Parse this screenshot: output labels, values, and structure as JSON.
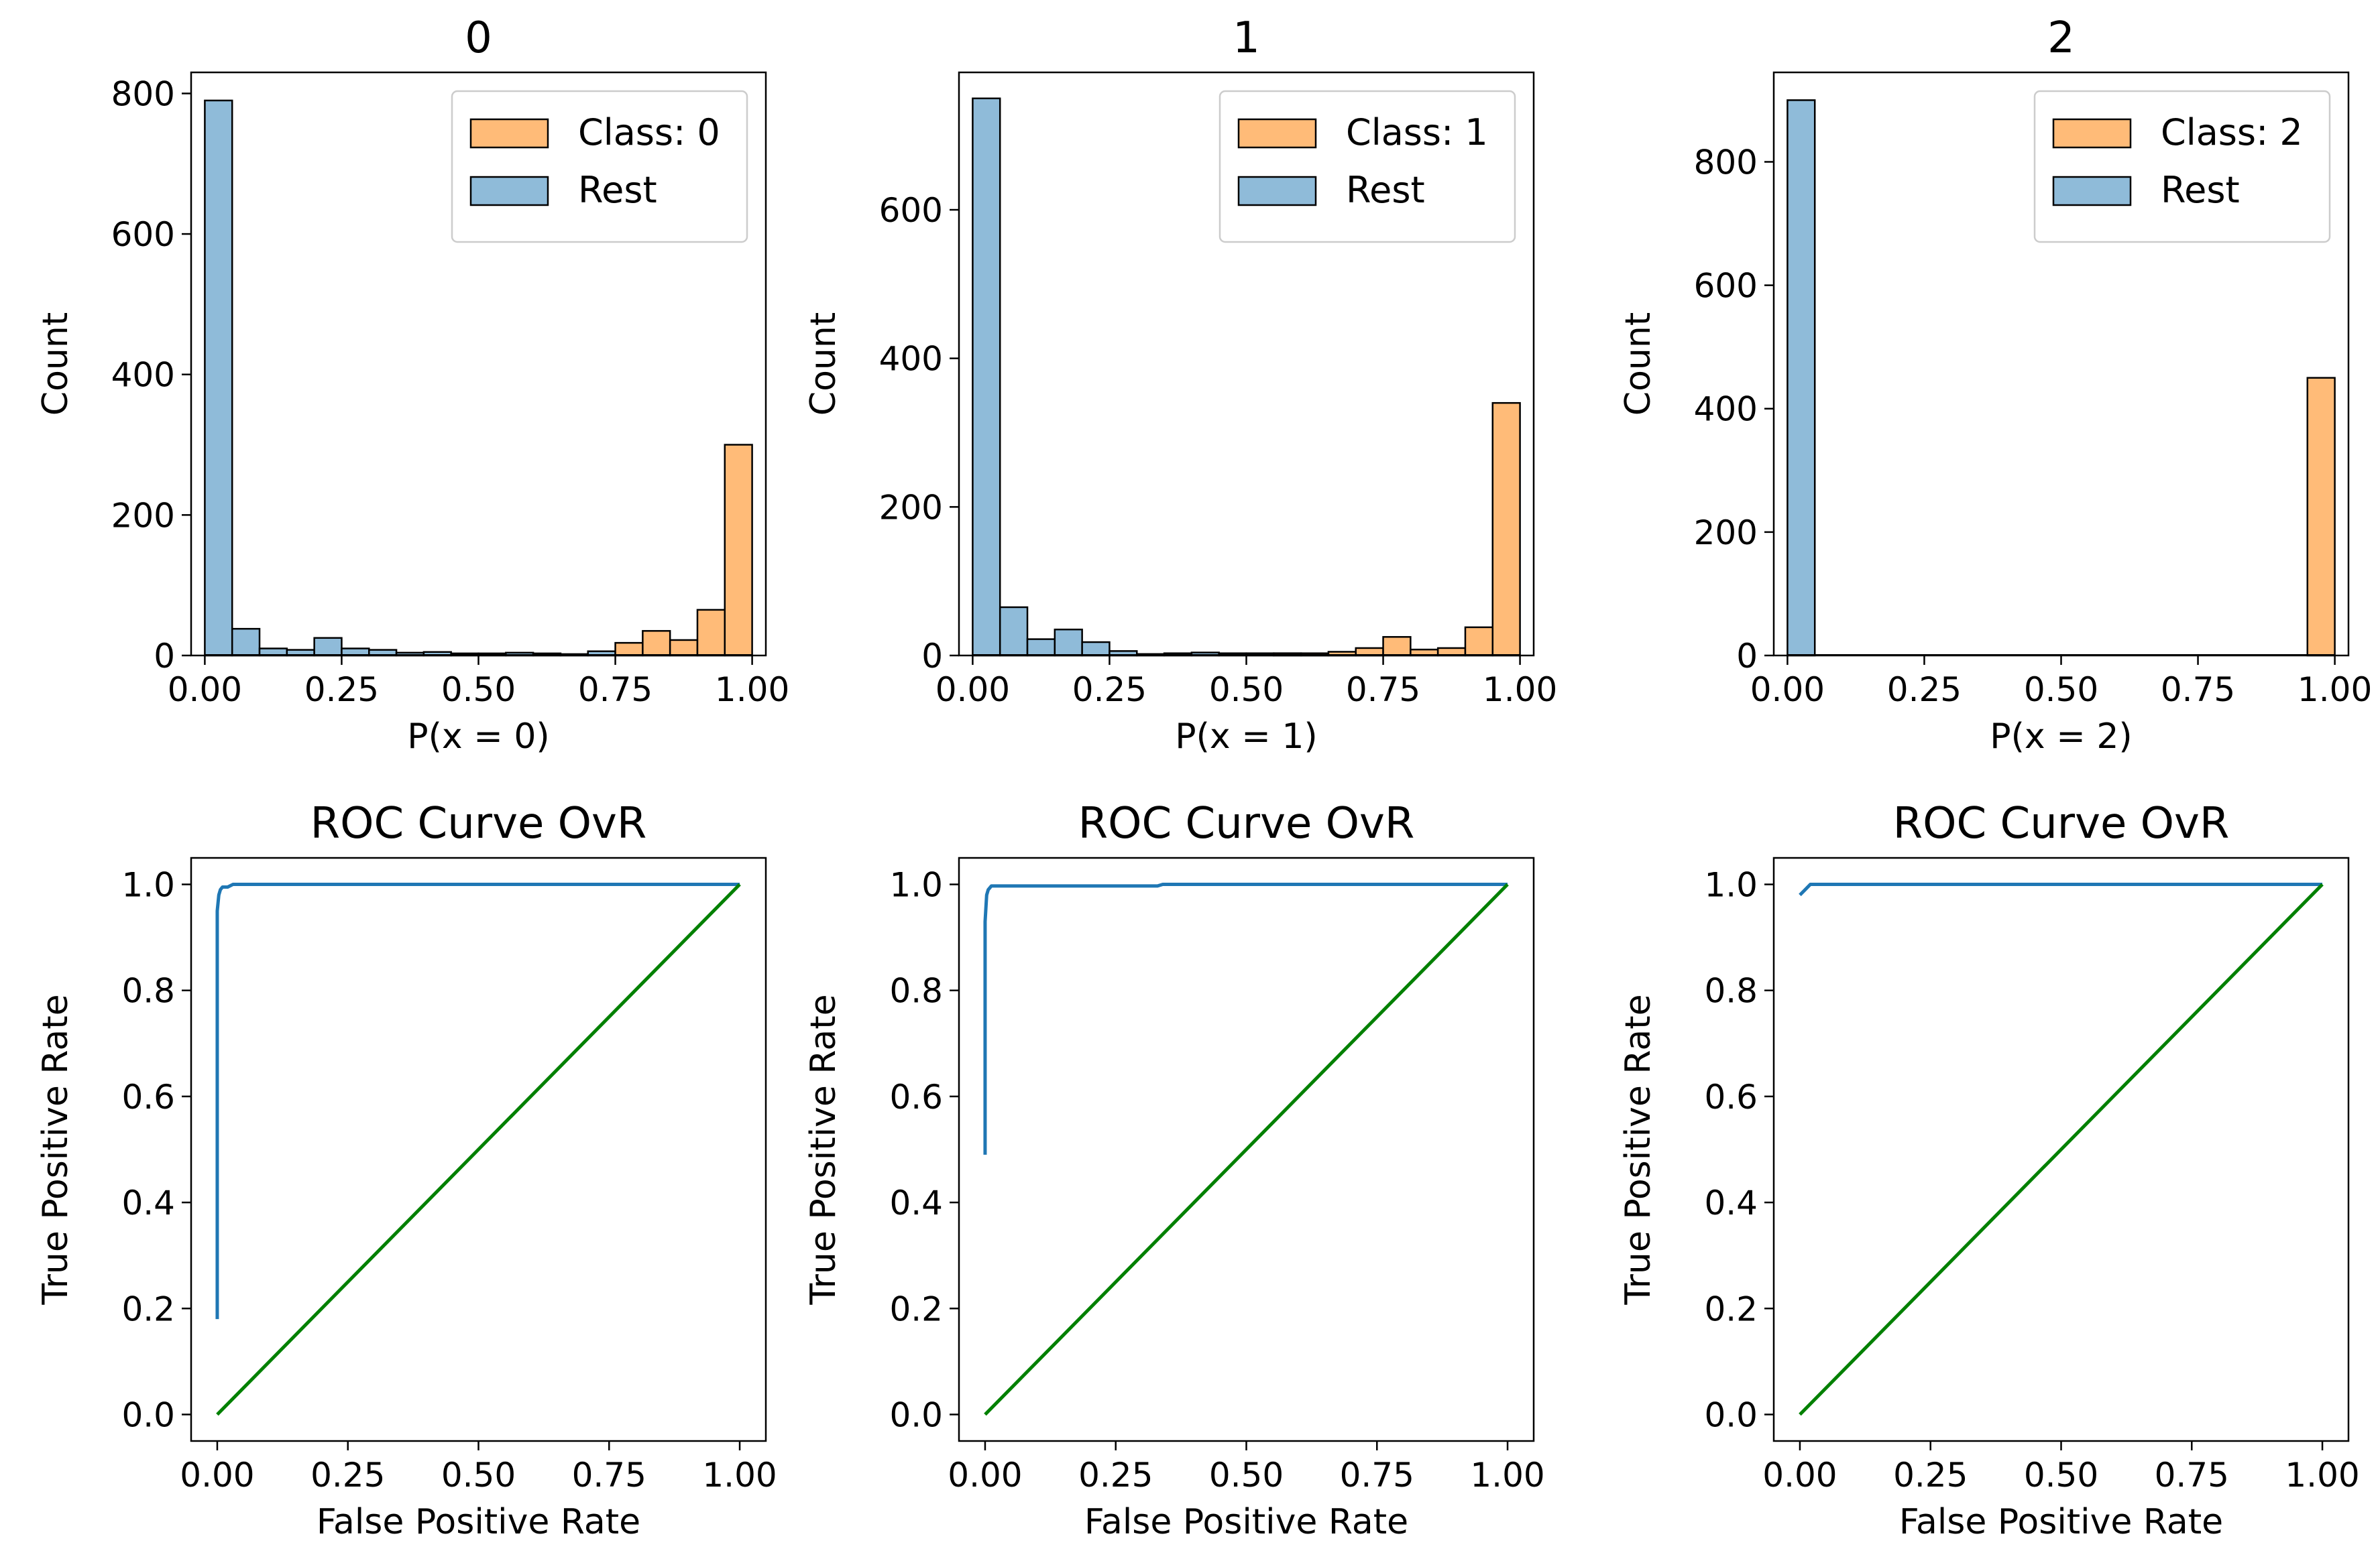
{
  "colors": {
    "class_hist": "#ffbb78",
    "rest_hist": "#8fbbd9",
    "roc_line": "#1f77b4",
    "diagonal": "#008000",
    "edge": "#000000"
  },
  "chart_data": [
    {
      "type": "bar",
      "kind": "histogram",
      "title": "0",
      "xlabel": "P(x = 0)",
      "ylabel": "Count",
      "xlim": [
        -0.025,
        1.025
      ],
      "ylim": [
        0,
        830
      ],
      "xticks": [
        0.0,
        0.25,
        0.5,
        0.75,
        1.0
      ],
      "xtick_labels": [
        "0.00",
        "0.25",
        "0.50",
        "0.75",
        "1.00"
      ],
      "yticks": [
        0,
        200,
        400,
        600,
        800
      ],
      "ytick_labels": [
        "0",
        "200",
        "400",
        "600",
        "800"
      ],
      "bin_width": 0.05,
      "bin_starts": [
        0.0,
        0.05,
        0.1,
        0.15,
        0.2,
        0.25,
        0.3,
        0.35,
        0.4,
        0.45,
        0.5,
        0.55,
        0.6,
        0.65,
        0.7,
        0.75,
        0.8,
        0.85,
        0.9,
        0.95
      ],
      "legend_position": "top-right",
      "series": [
        {
          "name": "Class: 0",
          "values": [
            0,
            0,
            0,
            0,
            0,
            0,
            0,
            0,
            0,
            0,
            0,
            0,
            0,
            0,
            0,
            18,
            35,
            22,
            65,
            300
          ]
        },
        {
          "name": "Rest",
          "values": [
            790,
            38,
            10,
            8,
            25,
            10,
            8,
            4,
            5,
            3,
            3,
            4,
            3,
            2,
            6,
            0,
            0,
            0,
            0,
            0
          ]
        }
      ]
    },
    {
      "type": "bar",
      "kind": "histogram",
      "title": "1",
      "xlabel": "P(x = 1)",
      "ylabel": "Count",
      "xlim": [
        -0.025,
        1.025
      ],
      "ylim": [
        0,
        785
      ],
      "xticks": [
        0.0,
        0.25,
        0.5,
        0.75,
        1.0
      ],
      "xtick_labels": [
        "0.00",
        "0.25",
        "0.50",
        "0.75",
        "1.00"
      ],
      "yticks": [
        0,
        200,
        400,
        600
      ],
      "ytick_labels": [
        "0",
        "200",
        "400",
        "600"
      ],
      "bin_width": 0.05,
      "bin_starts": [
        0.0,
        0.05,
        0.1,
        0.15,
        0.2,
        0.25,
        0.3,
        0.35,
        0.4,
        0.45,
        0.5,
        0.55,
        0.6,
        0.65,
        0.7,
        0.75,
        0.8,
        0.85,
        0.9,
        0.95
      ],
      "legend_position": "top-right",
      "series": [
        {
          "name": "Class: 1",
          "values": [
            0,
            0,
            0,
            0,
            0,
            0,
            0,
            0,
            0,
            0,
            0,
            3,
            3,
            5,
            10,
            25,
            8,
            10,
            38,
            340
          ]
        },
        {
          "name": "Rest",
          "values": [
            750,
            65,
            22,
            35,
            18,
            6,
            2,
            3,
            4,
            3,
            3,
            3,
            2,
            2,
            3,
            0,
            0,
            0,
            0,
            0
          ]
        }
      ]
    },
    {
      "type": "bar",
      "kind": "histogram",
      "title": "2",
      "xlabel": "P(x = 2)",
      "ylabel": "Count",
      "xlim": [
        -0.025,
        1.025
      ],
      "ylim": [
        0,
        945
      ],
      "xticks": [
        0.0,
        0.25,
        0.5,
        0.75,
        1.0
      ],
      "xtick_labels": [
        "0.00",
        "0.25",
        "0.50",
        "0.75",
        "1.00"
      ],
      "yticks": [
        0,
        200,
        400,
        600,
        800
      ],
      "ytick_labels": [
        "0",
        "200",
        "400",
        "600",
        "800"
      ],
      "bin_width": 0.05,
      "bin_starts": [
        0.0,
        0.05,
        0.1,
        0.15,
        0.2,
        0.25,
        0.3,
        0.35,
        0.4,
        0.45,
        0.5,
        0.55,
        0.6,
        0.65,
        0.7,
        0.75,
        0.8,
        0.85,
        0.9,
        0.95
      ],
      "legend_position": "top-right",
      "series": [
        {
          "name": "Class: 2",
          "values": [
            0,
            0,
            0,
            0,
            0,
            0,
            0,
            0,
            0,
            0,
            0,
            0,
            0,
            0,
            0,
            0,
            0,
            0,
            0,
            450
          ]
        },
        {
          "name": "Rest",
          "values": [
            900,
            0,
            0,
            0,
            0,
            0,
            0,
            0,
            0,
            0,
            0,
            0,
            0,
            0,
            0,
            0,
            0,
            0,
            0,
            0
          ]
        }
      ]
    },
    {
      "type": "line",
      "title": "ROC Curve OvR",
      "xlabel": "False Positive Rate",
      "ylabel": "True Positive Rate",
      "xlim": [
        -0.05,
        1.05
      ],
      "ylim": [
        -0.05,
        1.05
      ],
      "xticks": [
        0.0,
        0.25,
        0.5,
        0.75,
        1.0
      ],
      "xtick_labels": [
        "0.00",
        "0.25",
        "0.50",
        "0.75",
        "1.00"
      ],
      "yticks": [
        0.0,
        0.2,
        0.4,
        0.6,
        0.8,
        1.0
      ],
      "ytick_labels": [
        "0.0",
        "0.2",
        "0.4",
        "0.6",
        "0.8",
        "1.0"
      ],
      "series": [
        {
          "role": "roc",
          "x": [
            0.0,
            0.0,
            0.003,
            0.006,
            0.01,
            0.02,
            0.03,
            1.0
          ],
          "y": [
            0.18,
            0.95,
            0.98,
            0.99,
            0.995,
            0.995,
            1.0,
            1.0
          ]
        },
        {
          "role": "diagonal",
          "x": [
            0.0,
            1.0
          ],
          "y": [
            0.0,
            1.0
          ]
        }
      ]
    },
    {
      "type": "line",
      "title": "ROC Curve OvR",
      "xlabel": "False Positive Rate",
      "ylabel": "True Positive Rate",
      "xlim": [
        -0.05,
        1.05
      ],
      "ylim": [
        -0.05,
        1.05
      ],
      "xticks": [
        0.0,
        0.25,
        0.5,
        0.75,
        1.0
      ],
      "xtick_labels": [
        "0.00",
        "0.25",
        "0.50",
        "0.75",
        "1.00"
      ],
      "yticks": [
        0.0,
        0.2,
        0.4,
        0.6,
        0.8,
        1.0
      ],
      "ytick_labels": [
        "0.0",
        "0.2",
        "0.4",
        "0.6",
        "0.8",
        "1.0"
      ],
      "series": [
        {
          "role": "roc",
          "x": [
            0.0,
            0.0,
            0.003,
            0.006,
            0.012,
            0.33,
            0.34,
            1.0
          ],
          "y": [
            0.49,
            0.93,
            0.98,
            0.99,
            0.997,
            0.997,
            1.0,
            1.0
          ]
        },
        {
          "role": "diagonal",
          "x": [
            0.0,
            1.0
          ],
          "y": [
            0.0,
            1.0
          ]
        }
      ]
    },
    {
      "type": "line",
      "title": "ROC Curve OvR",
      "xlabel": "False Positive Rate",
      "ylabel": "True Positive Rate",
      "xlim": [
        -0.05,
        1.05
      ],
      "ylim": [
        -0.05,
        1.05
      ],
      "xticks": [
        0.0,
        0.25,
        0.5,
        0.75,
        1.0
      ],
      "xtick_labels": [
        "0.00",
        "0.25",
        "0.50",
        "0.75",
        "1.00"
      ],
      "yticks": [
        0.0,
        0.2,
        0.4,
        0.6,
        0.8,
        1.0
      ],
      "ytick_labels": [
        "0.0",
        "0.2",
        "0.4",
        "0.6",
        "0.8",
        "1.0"
      ],
      "series": [
        {
          "role": "roc",
          "x": [
            0.0,
            0.0,
            0.01,
            0.02,
            1.0
          ],
          "y": [
            0.98,
            0.98,
            0.99,
            1.0,
            1.0
          ]
        },
        {
          "role": "diagonal",
          "x": [
            0.0,
            1.0
          ],
          "y": [
            0.0,
            1.0
          ]
        }
      ]
    }
  ]
}
